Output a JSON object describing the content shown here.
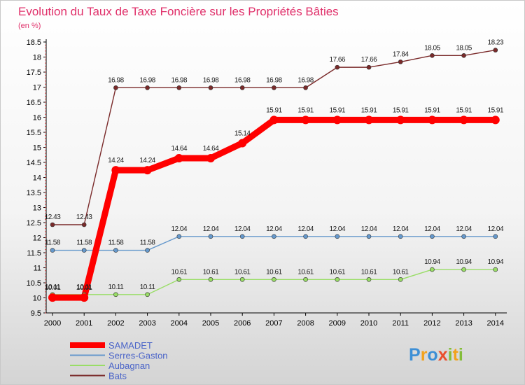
{
  "chart_data": {
    "type": "line",
    "title": "Evolution du Taux de Taxe Foncière sur les Propriétés Bâties",
    "ylabel": "(en %)",
    "xlabel": "",
    "ylim": [
      9.5,
      18.5
    ],
    "yticks": [
      9.5,
      10,
      10.5,
      11,
      11.5,
      12,
      12.5,
      13,
      13.5,
      14,
      14.5,
      15,
      15.5,
      16,
      16.5,
      17,
      17.5,
      18,
      18.5
    ],
    "ytick_labels": [
      "9.5",
      "10",
      "10.5",
      "11",
      "11.5",
      "12",
      "12.5",
      "13",
      "13.5",
      "14",
      "14.5",
      "15",
      "15.5",
      "16",
      "16.5",
      "17",
      "17.5",
      "18",
      "18.5"
    ],
    "categories": [
      "2000",
      "2001",
      "2002",
      "2003",
      "2004",
      "2005",
      "2006",
      "2007",
      "2008",
      "2009",
      "2010",
      "2011",
      "2012",
      "2013",
      "2014"
    ],
    "series": [
      {
        "name": "SAMADET",
        "color": "#ff0000",
        "values": [
          10.01,
          10.01,
          14.24,
          14.24,
          14.64,
          14.64,
          15.14,
          15.91,
          15.91,
          15.91,
          15.91,
          15.91,
          15.91,
          15.91,
          15.91
        ],
        "labels": [
          "10.01",
          "10.01",
          "14.24",
          "14.24",
          "14.64",
          "14.64",
          "15.14",
          "15.91",
          "15.91",
          "15.91",
          "15.91",
          "15.91",
          "15.91",
          "15.91",
          "15.91"
        ]
      },
      {
        "name": "Serres-Gaston",
        "color": "#6699cc",
        "values": [
          11.58,
          11.58,
          11.58,
          11.58,
          12.04,
          12.04,
          12.04,
          12.04,
          12.04,
          12.04,
          12.04,
          12.04,
          12.04,
          12.04,
          12.04
        ],
        "labels": [
          "11.58",
          "11.58",
          "11.58",
          "11.58",
          "12.04",
          "12.04",
          "12.04",
          "12.04",
          "12.04",
          "12.04",
          "12.04",
          "12.04",
          "12.04",
          "12.04",
          "12.04"
        ]
      },
      {
        "name": "Aubagnan",
        "color": "#99dd66",
        "values": [
          10.11,
          10.11,
          10.11,
          10.11,
          10.61,
          10.61,
          10.61,
          10.61,
          10.61,
          10.61,
          10.61,
          10.61,
          10.94,
          10.94,
          10.94
        ],
        "labels": [
          "10.11",
          "10.11",
          "10.11",
          "10.11",
          "10.61",
          "10.61",
          "10.61",
          "10.61",
          "10.61",
          "10.61",
          "10.61",
          "10.61",
          "10.94",
          "10.94",
          "10.94"
        ]
      },
      {
        "name": "Bats",
        "color": "#7a2a2a",
        "values": [
          12.43,
          12.43,
          16.98,
          16.98,
          16.98,
          16.98,
          16.98,
          16.98,
          16.98,
          17.66,
          17.66,
          17.84,
          18.05,
          18.05,
          18.23
        ],
        "labels": [
          "12.43",
          "12.43",
          "16.98",
          "16.98",
          "16.98",
          "16.98",
          "16.98",
          "16.98",
          "16.98",
          "17.66",
          "17.66",
          "17.84",
          "18.05",
          "18.05",
          "18.23"
        ]
      }
    ],
    "legend_position": "bottom-left",
    "watermark": "Proxiti",
    "grid": false
  },
  "colors": {
    "title": "#e0306a",
    "axis_text": "#000000",
    "axis_line": "#000000",
    "background_top": "#ffffff",
    "background_bottom": "#d6d6d6",
    "frame": "#c8c8c8"
  }
}
